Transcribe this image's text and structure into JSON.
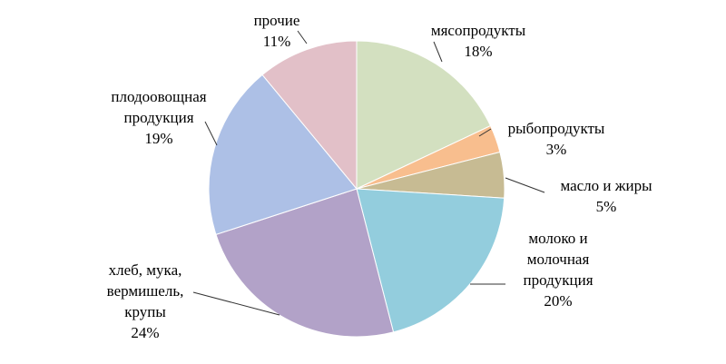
{
  "chart_data": {
    "type": "pie",
    "categories": [
      "мясопродукты",
      "рыбопродукты",
      "масло и жиры",
      "молоко и молочная продукция",
      "хлеб, мука, вермишель, крупы",
      "плодоовощная продукция",
      "прочие"
    ],
    "values": [
      18,
      3,
      5,
      20,
      24,
      19,
      11
    ],
    "value_labels": [
      "18%",
      "3%",
      "5%",
      "20%",
      "24%",
      "19%",
      "11%"
    ],
    "colors": [
      "#d3e0c0",
      "#f8be8e",
      "#c7bb93",
      "#93cddd",
      "#b2a2c8",
      "#adc0e6",
      "#e2c0c8"
    ]
  }
}
